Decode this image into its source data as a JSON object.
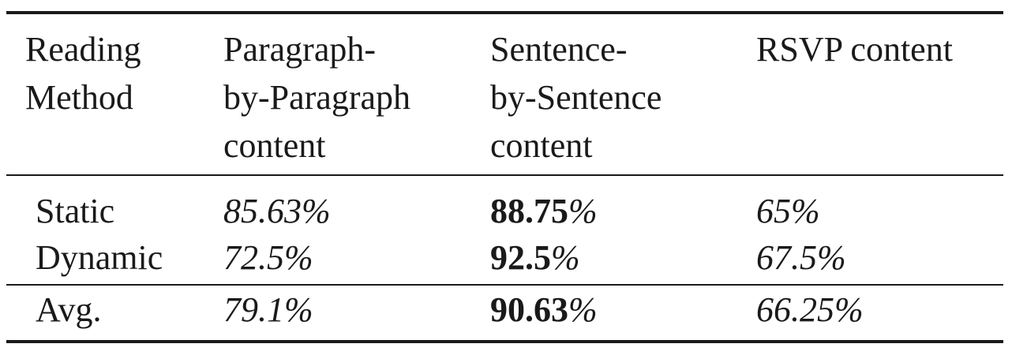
{
  "table": {
    "headers": [
      [
        "Reading",
        "Method"
      ],
      [
        "Paragraph-",
        "by-Paragraph",
        "content"
      ],
      [
        "Sentence-",
        "by-Sentence",
        "content"
      ],
      [
        "RSVP content"
      ]
    ],
    "rows": [
      {
        "label": "Static",
        "paragraph": "85.63%",
        "sentence": "88.75",
        "sentence_unit": "%",
        "rsvp": "65%"
      },
      {
        "label": "Dynamic",
        "paragraph": "72.5%",
        "sentence": "92.5",
        "sentence_unit": "%",
        "rsvp": "67.5%"
      },
      {
        "label": "Avg.",
        "paragraph": "79.1%",
        "sentence": "90.63",
        "sentence_unit": "%",
        "rsvp": "66.25%"
      }
    ]
  }
}
